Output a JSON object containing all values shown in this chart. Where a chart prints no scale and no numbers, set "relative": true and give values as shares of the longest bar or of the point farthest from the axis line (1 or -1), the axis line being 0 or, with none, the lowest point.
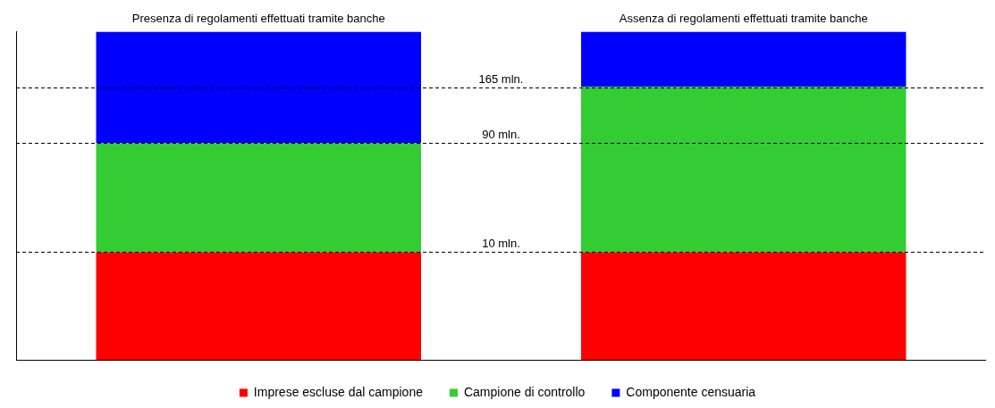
{
  "chart_data": {
    "type": "bar",
    "relative": true,
    "stacked": true,
    "categories": [
      "Presenza di regolamenti effettuati tramite banche",
      "Assenza di regolamenti effettuati tramite banche"
    ],
    "series": [
      {
        "name": "Imprese escluse dal campione",
        "color": "#ff0000",
        "values": [
          0.328,
          0.328
        ]
      },
      {
        "name": "Campione di controllo",
        "color": "#33cc33",
        "values": [
          0.333,
          0.504
        ]
      },
      {
        "name": "Componente censuaria",
        "color": "#0000ff",
        "values": [
          0.339,
          0.168
        ]
      }
    ],
    "ref_lines": [
      {
        "axis": "y",
        "value": 0.328,
        "label": "10 mln.",
        "line_style": "dashed",
        "color": "#000000"
      },
      {
        "axis": "y",
        "value": 0.661,
        "label": "90 mln.",
        "line_style": "dashed",
        "color": "#000000"
      },
      {
        "axis": "y",
        "value": 0.831,
        "label": "165 mln.",
        "line_style": "dashed",
        "color": "#000000"
      }
    ],
    "legend": "bottom",
    "grid": false
  }
}
